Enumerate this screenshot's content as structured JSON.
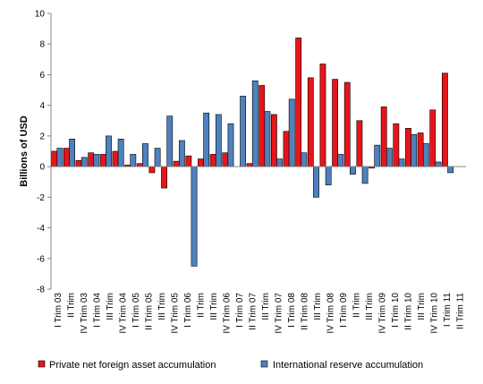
{
  "chart_data": {
    "type": "bar",
    "ylabel": "Billions of USD",
    "ylim": [
      -8,
      10
    ],
    "yticks": [
      -8,
      -6,
      -4,
      -2,
      0,
      2,
      4,
      6,
      8,
      10
    ],
    "grid": false,
    "legend_position": "bottom",
    "categories": [
      "I Trim 03",
      "II Trim 03",
      "III Trim 03",
      "IV Trim 03",
      "I Trim 04",
      "II Trim 04",
      "III Trim 04",
      "IV Trim 04",
      "I Trim 05",
      "II Trim 05",
      "III Trim 05",
      "IV Trim 05",
      "I Trim 06",
      "II Trim 06",
      "III Trim 06",
      "IV Trim 06",
      "I Trim 07",
      "II Trim 07",
      "III Trim 07",
      "IV Trim 07",
      "I Trim 08",
      "II Trim 08",
      "III Trim 08",
      "IV Trim 08",
      "I Trim 09",
      "II Trim 09",
      "III Trim 09",
      "IV Trim 09",
      "I Trim 10",
      "II Trim 10",
      "III Trim 10",
      "IV Trim 10",
      "I Trim 11",
      "II Trim 11"
    ],
    "tick_labels_shown": [
      "I Trim 03",
      "II Trim",
      "IV Trim 03",
      "I Trim 04",
      "III Trim",
      "IV Trim 04",
      "I Trim 05",
      "II Trim 05",
      "III Trim",
      "IV Trim 05",
      "I Trim 06",
      "II Trim",
      "III Trim",
      "IV Trim 06",
      "I Trim 07",
      "II Trim 07",
      "III Trim",
      "IV Trim 07",
      "I Trim 08",
      "II Trim 08",
      "III Trim",
      "IV Trim 08",
      "I Trim 09",
      "II Trim",
      "III Trim",
      "IV Trim 09",
      "I Trim 10",
      "II Trim 10",
      "III Trim",
      "IV Trim 10",
      "I Trim 11",
      "II Trim 11"
    ],
    "series": [
      {
        "name": "Private net foreign asset accumulation",
        "color": "#e8141b",
        "values": [
          1.0,
          1.2,
          0.4,
          0.9,
          0.8,
          1.0,
          0.1,
          0.2,
          -0.4,
          -1.4,
          0.35,
          0.7,
          0.5,
          0.8,
          0.9,
          0.0,
          0.2,
          5.3,
          3.4,
          2.3,
          8.4,
          5.8,
          6.7,
          5.7,
          5.5,
          3.0,
          -0.1,
          3.9,
          2.8,
          2.5,
          2.2,
          3.7,
          6.1,
          0.0
        ]
      },
      {
        "name": "International reserve accumulation",
        "color": "#4f81bd",
        "values": [
          1.2,
          1.8,
          0.6,
          0.8,
          2.0,
          1.8,
          0.8,
          1.5,
          1.2,
          3.3,
          1.7,
          -6.5,
          3.5,
          3.4,
          2.8,
          4.6,
          5.6,
          3.6,
          0.5,
          4.4,
          0.9,
          -2.0,
          -1.2,
          0.8,
          -0.5,
          -1.1,
          1.4,
          1.2,
          0.5,
          2.1,
          1.5,
          0.3,
          -0.4,
          0.0
        ]
      }
    ]
  }
}
